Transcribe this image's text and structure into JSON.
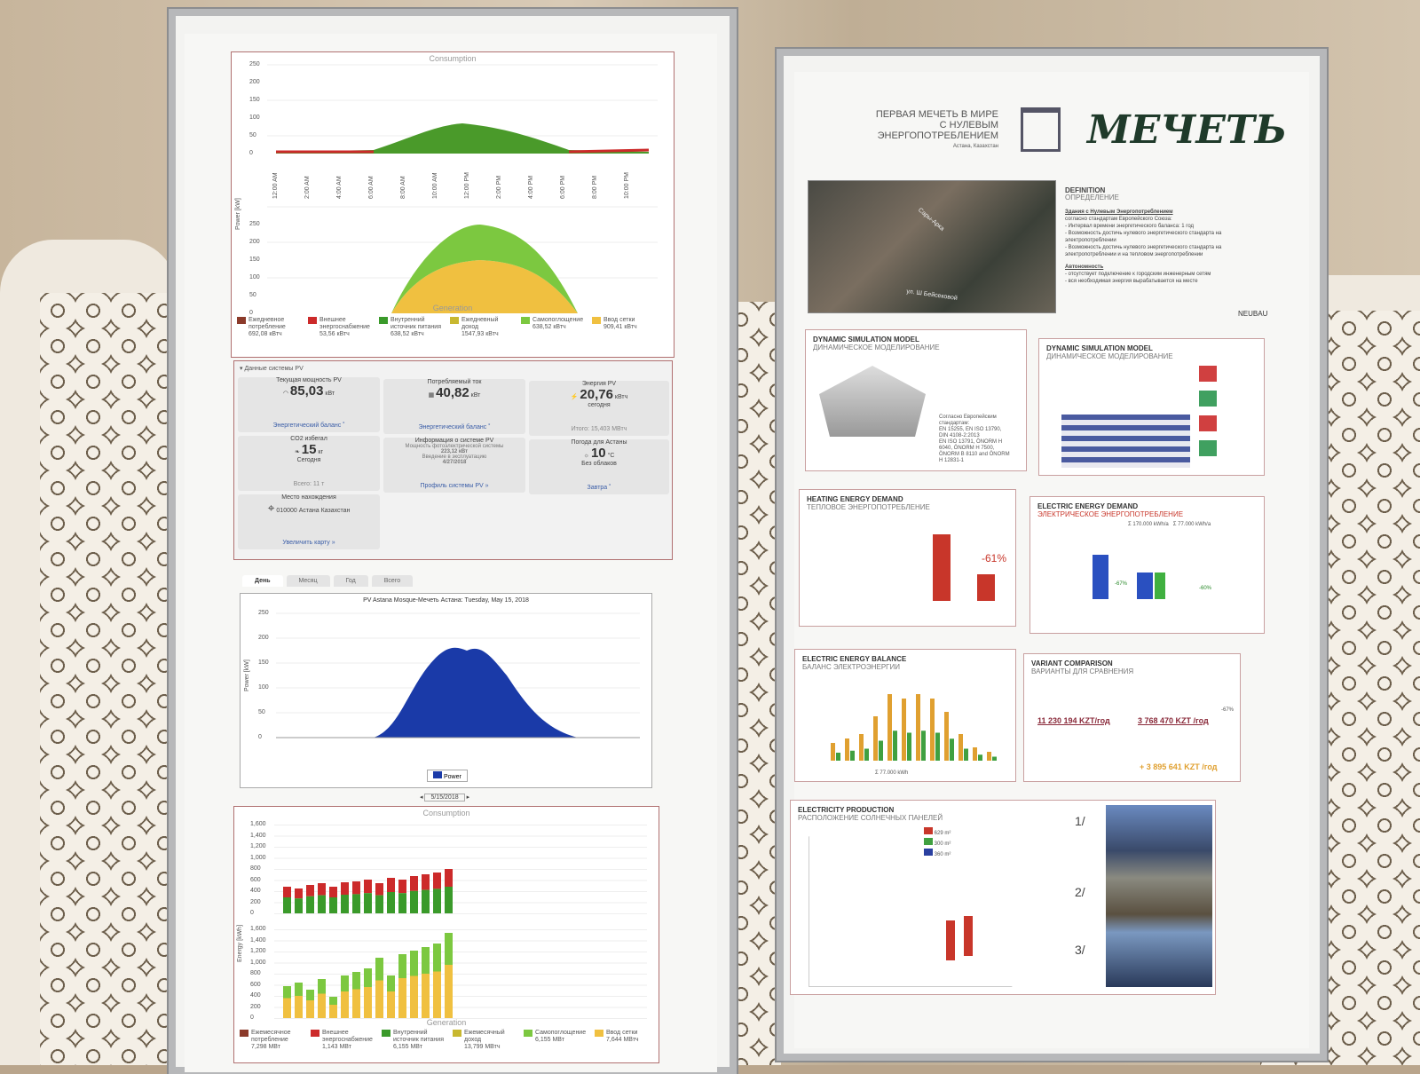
{
  "left_poster": {
    "day_chart": {
      "top_title": "Consumption",
      "bottom_title": "Generation",
      "y_label": "Power [kW]",
      "y_ticks": [
        "250",
        "200",
        "150",
        "100",
        "50",
        "0"
      ],
      "x_ticks": [
        "12:00 AM",
        "2:00 AM",
        "4:00 AM",
        "6:00 AM",
        "8:00 AM",
        "10:00 AM",
        "12:00 PM",
        "2:00 PM",
        "4:00 PM",
        "6:00 PM",
        "8:00 PM",
        "10:00 PM"
      ],
      "legend": [
        {
          "label": "Ежедневное потребление",
          "value": "692,08 кВтч",
          "color": "#8b3a2a"
        },
        {
          "label": "Внешнее энергоснабжение",
          "value": "53,56 кВтч",
          "color": "#cc2a2a"
        },
        {
          "label": "Внутренний источник питания",
          "value": "638,52 кВтч",
          "color": "#3a9a2a"
        },
        {
          "label": "Ежедневный доход",
          "value": "1547,93 кВтч",
          "color": "#c8b830"
        },
        {
          "label": "Самопоглощение",
          "value": "638,52 кВтч",
          "color": "#7cc840"
        },
        {
          "label": "Ввод сетки",
          "value": "909,41 кВтч",
          "color": "#f0c040"
        }
      ]
    },
    "pv_section": {
      "header": "▾ Данные системы PV",
      "tiles": [
        {
          "title": "Текущая мощность PV",
          "value": "85,03",
          "unit": "кВт",
          "link": "Энергетический баланс ˚"
        },
        {
          "title": "Потребляемый ток",
          "value": "40,82",
          "unit": "кВт",
          "link": "Энергетический баланс ˚"
        },
        {
          "title": "Энергия PV",
          "value": "20,76",
          "unit": "кВтч",
          "sub": "сегодня",
          "link": "Итого: 15,403 МВтч"
        },
        {
          "title": "CO2 избегал",
          "value": "15",
          "unit": "кг",
          "sub": "Сегодня",
          "link": "Всего: 11 т"
        },
        {
          "title": "Информация о системе PV",
          "lines": [
            "Мощность",
            "фотоэлектрической системы",
            "223,12 кВт",
            "Введение в эксплуатацию",
            "4/27/2018"
          ],
          "link": "Профиль системы PV »"
        },
        {
          "title": "Погода для Астаны",
          "value": "10",
          "unit": "°C",
          "sub": "Без облаков",
          "link": "Завтра ˚"
        },
        {
          "title": "Место нахождения",
          "lines": [
            "010000 Астана",
            "Казахстан"
          ],
          "link": "Увеличить карту »"
        }
      ]
    },
    "tabs": [
      "День",
      "Месяц",
      "Год",
      "Всего"
    ],
    "pv_chart": {
      "title": "PV Astana Mosque-Мечеть Астана: Tuesday, May 15, 2018",
      "y_label": "Power [kW]",
      "y_ticks": [
        "250",
        "200",
        "150",
        "100",
        "50",
        "0"
      ],
      "legend": "Power",
      "date": "5/15/2018",
      "color": "#1a3aa8"
    },
    "month_chart": {
      "top_title": "Consumption",
      "bottom_title": "Generation",
      "y_label": "Energy [kWh]",
      "y_ticks": [
        "1,600",
        "1,400",
        "1,200",
        "1,000",
        "800",
        "600",
        "400",
        "200",
        "0"
      ],
      "legend": [
        {
          "label": "Ежемесячное потребление",
          "value": "7,298 МВт"
        },
        {
          "label": "Внешнее энергоснабжение",
          "value": "1,143 МВт"
        },
        {
          "label": "Внутренний источник питания",
          "value": "6,155 МВт"
        },
        {
          "label": "Ежемесячный доход",
          "value": "13,799 МВтч"
        },
        {
          "label": "Самопоглощение",
          "value": "6,155 МВт"
        },
        {
          "label": "Ввод сетки",
          "value": "7,644 МВтч"
        }
      ]
    }
  },
  "right_poster": {
    "header": {
      "line1": "ПЕРВАЯ МЕЧЕТЬ В МИРЕ",
      "line2": "С НУЛЕВЫМ",
      "line3": "ЭНЕРГОПОТРЕБЛЕНИЕМ",
      "location": "Астана, Казахстан",
      "logo_text": "МЕЧЕТЬ"
    },
    "map_labels": [
      "ул. Ш Бейсековой",
      "Сары-Арка"
    ],
    "definition": {
      "title": "DEFINITION",
      "subtitle": "ОПРЕДЕЛЕНИЕ",
      "intro": "Здания с Нулевым Энергопотреблением",
      "text": [
        "согласно стандартам Европейского Союза:",
        "- Интервал времени энергетического баланса: 1 год",
        "- Возможность достичь нулевого энергетического стандарта на электропотреблении",
        "- Возможность достичь нулевого энергетического стандарта на электропотреблении и на тепловом энергопотреблении"
      ],
      "autonomy_title": "Автономность",
      "autonomy": [
        "- отсутствует подключение к городским инженерным сетям",
        "- вся необходимая энергия вырабатывается на месте"
      ]
    },
    "brand": "NEUBAU",
    "sections": [
      {
        "title": "DYNAMIC SIMULATION MODEL",
        "subtitle": "ДИНАМИЧЕСКОЕ МОДЕЛИРОВАНИЕ"
      },
      {
        "title": "DYNAMIC SIMULATION MODEL",
        "subtitle": "ДИНАМИЧЕСКОЕ МОДЕЛИРОВАНИЕ"
      },
      {
        "title": "HEATING ENERGY DEMAND",
        "subtitle": "ТЕПЛОВОЕ ЭНЕРГОПОТРЕБЛЕНИЕ",
        "badge": "-61%"
      },
      {
        "title": "ELECTRIC ENERGY DEMAND",
        "subtitle": "ЭЛЕКТРИЧЕСКОЕ ЭНЕРГОПОТРЕБЛЕНИЕ",
        "values": [
          "Σ 170.000 kWh/a",
          "Σ 77.000 kWh/a"
        ],
        "badges": [
          "-67%",
          "-60%"
        ]
      },
      {
        "title": "ELECTRIC ENERGY BALANCE",
        "subtitle": "БАЛАНС ЭЛЕКТРОЭНЕРГИИ",
        "footer": "Σ 77.000 kWh"
      },
      {
        "title": "VARIANT COMPARISON",
        "subtitle": "ВАРИАНТЫ ДЛЯ СРАВНЕНИЯ",
        "v1": "11 230 194 KZT/год",
        "v2": "3 768 470 KZT /год",
        "total": "+ 3 895 641 KZT /год",
        "pct": "-67%"
      },
      {
        "title": "ELECTRICITY PRODUCTION",
        "subtitle": "РАСПОЛОЖЕНИЕ СОЛНЕЧНЫХ ПАНЕЛЕЙ",
        "areas": [
          "629 m²",
          "300 m²",
          "360 m²"
        ],
        "labels": [
          "1/",
          "2/",
          "3/"
        ]
      }
    ],
    "standards": [
      "Согласно Европейским стандартам:",
      "EN 15255, EN ISO 13790,",
      "DIN 4108-2:2013",
      "EN ISO 13791, ÖNORM H",
      "6040, ÖNORM H 7500,",
      "ÖNORM B 8110 and ÖNORM",
      "H 12831-1"
    ]
  }
}
